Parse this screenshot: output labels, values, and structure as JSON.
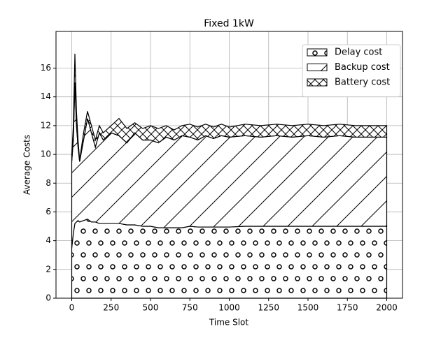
{
  "chart_data": {
    "type": "stacked_area",
    "title": "Fixed 1kW",
    "x_label": "Time Slot",
    "y_label": "Average Costs",
    "x": [
      0,
      10,
      20,
      30,
      40,
      50,
      75,
      100,
      125,
      150,
      175,
      200,
      250,
      300,
      350,
      400,
      450,
      500,
      550,
      600,
      650,
      700,
      750,
      800,
      850,
      900,
      950,
      1000,
      1100,
      1200,
      1300,
      1400,
      1500,
      1600,
      1700,
      1800,
      1900,
      2000
    ],
    "series": [
      {
        "name": "Delay cost",
        "color": "#000000",
        "hatch": "o",
        "values": [
          3.5,
          4.5,
          5.2,
          5.3,
          5.4,
          5.3,
          5.4,
          5.5,
          5.3,
          5.3,
          5.2,
          5.2,
          5.2,
          5.2,
          5.1,
          5.1,
          5.0,
          5.0,
          4.9,
          4.9,
          4.9,
          4.9,
          5.0,
          4.95,
          4.95,
          4.95,
          4.95,
          4.95,
          5.0,
          5.0,
          5.0,
          5.0,
          5.0,
          5.0,
          5.0,
          5.0,
          5.0,
          5.0
        ]
      },
      {
        "name": "Backup cost",
        "color": "#000000",
        "hatch": "/",
        "values": [
          6.0,
          6.5,
          9.8,
          6.7,
          5.1,
          4.2,
          5.6,
          7.0,
          6.2,
          5.2,
          6.3,
          5.8,
          6.3,
          6.1,
          5.7,
          6.4,
          6.0,
          6.0,
          5.9,
          6.3,
          6.1,
          6.4,
          6.2,
          6.05,
          6.35,
          6.15,
          6.35,
          6.25,
          6.3,
          6.2,
          6.3,
          6.2,
          6.3,
          6.2,
          6.3,
          6.2,
          6.2,
          6.2
        ]
      },
      {
        "name": "Battery cost",
        "color": "#000000",
        "hatch": "x",
        "values": [
          0.5,
          1.0,
          2.0,
          1.0,
          0.5,
          0.1,
          0.5,
          0.5,
          0.5,
          0.5,
          0.5,
          0.5,
          0.5,
          1.2,
          1.0,
          0.7,
          0.8,
          1.0,
          1.0,
          0.8,
          0.7,
          0.7,
          0.9,
          0.9,
          0.8,
          0.8,
          0.8,
          0.7,
          0.8,
          0.8,
          0.8,
          0.8,
          0.8,
          0.8,
          0.8,
          0.8,
          0.8,
          0.8
        ]
      }
    ],
    "xlim": [
      -100,
      2100
    ],
    "xticks": [
      0,
      250,
      500,
      750,
      1000,
      1250,
      1500,
      1750,
      2000
    ],
    "ylim": [
      0,
      18.55
    ],
    "yticks": [
      0,
      2,
      4,
      6,
      8,
      10,
      12,
      14,
      16
    ],
    "grid": true,
    "legend": "upper right"
  }
}
